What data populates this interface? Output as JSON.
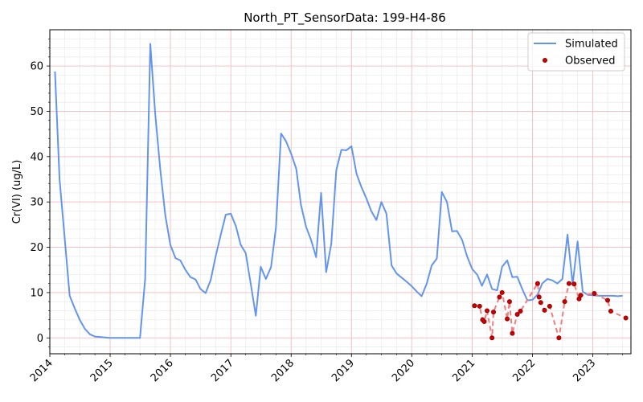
{
  "chart_data": {
    "type": "line",
    "title": "North_PT_SensorData: 199-H4-86",
    "xlabel": "",
    "ylabel": "Cr(VI) (ug/L)",
    "x_axis": "date",
    "xlim": [
      "2014-01-01",
      "2023-08-20"
    ],
    "ylim": [
      -3.5,
      68
    ],
    "x_ticks": [
      "2014-01-01",
      "2015-01-01",
      "2016-01-01",
      "2017-01-01",
      "2018-01-01",
      "2019-01-01",
      "2020-01-01",
      "2021-01-01",
      "2022-01-01",
      "2023-01-01"
    ],
    "x_tick_labels": [
      "2014",
      "2015",
      "2016",
      "2017",
      "2018",
      "2019",
      "2020",
      "2021",
      "2022",
      "2023"
    ],
    "y_ticks": [
      0,
      10,
      20,
      30,
      40,
      50,
      60
    ],
    "y_tick_labels": [
      "0",
      "10",
      "20",
      "30",
      "40",
      "50",
      "60"
    ],
    "grid": true,
    "legend_position": "top-right",
    "legend": [
      {
        "label": "Simulated",
        "marker": "line"
      },
      {
        "label": "Observed",
        "marker": "dot"
      }
    ],
    "colors": {
      "simulated": "#6495ed",
      "observed": "#cc0000",
      "observed_line": "#f08080",
      "major_grid": "#f4c2c2",
      "minor_grid": "#ececec"
    },
    "series": [
      {
        "name": "Simulated",
        "style": "line",
        "x": [
          "2014-02-01",
          "2014-03-01",
          "2014-04-01",
          "2014-05-01",
          "2014-06-01",
          "2014-07-01",
          "2014-08-01",
          "2014-09-01",
          "2014-10-01",
          "2014-11-01",
          "2014-12-01",
          "2015-01-01",
          "2015-02-01",
          "2015-03-01",
          "2015-04-01",
          "2015-05-01",
          "2015-06-01",
          "2015-07-01",
          "2015-08-01",
          "2015-09-01",
          "2015-10-01",
          "2015-11-01",
          "2015-12-01",
          "2016-01-01",
          "2016-02-01",
          "2016-03-01",
          "2016-04-01",
          "2016-05-01",
          "2016-06-01",
          "2016-07-01",
          "2016-08-01",
          "2016-09-01",
          "2016-10-01",
          "2016-11-01",
          "2016-12-01",
          "2017-01-01",
          "2017-02-01",
          "2017-03-01",
          "2017-04-01",
          "2017-05-01",
          "2017-06-01",
          "2017-07-01",
          "2017-08-01",
          "2017-09-01",
          "2017-10-01",
          "2017-11-01",
          "2017-12-01",
          "2018-01-01",
          "2018-02-01",
          "2018-03-01",
          "2018-04-01",
          "2018-05-01",
          "2018-06-01",
          "2018-07-01",
          "2018-08-01",
          "2018-09-01",
          "2018-10-01",
          "2018-11-01",
          "2018-12-01",
          "2019-01-01",
          "2019-02-01",
          "2019-03-01",
          "2019-04-01",
          "2019-05-01",
          "2019-06-01",
          "2019-07-01",
          "2019-08-01",
          "2019-09-01",
          "2019-10-01",
          "2019-11-01",
          "2019-12-01",
          "2020-01-01",
          "2020-02-01",
          "2020-03-01",
          "2020-04-01",
          "2020-05-01",
          "2020-06-01",
          "2020-07-01",
          "2020-08-01",
          "2020-09-01",
          "2020-10-01",
          "2020-11-01",
          "2020-12-01",
          "2021-01-01",
          "2021-02-01",
          "2021-03-01",
          "2021-04-01",
          "2021-05-01",
          "2021-06-01",
          "2021-07-01",
          "2021-08-01",
          "2021-09-01",
          "2021-10-01",
          "2021-11-01",
          "2021-12-01",
          "2022-01-01",
          "2022-02-01",
          "2022-03-01",
          "2022-04-01",
          "2022-05-01",
          "2022-06-01",
          "2022-07-01",
          "2022-08-01",
          "2022-09-01",
          "2022-10-01",
          "2022-11-01",
          "2022-12-01",
          "2023-01-01",
          "2023-02-01",
          "2023-03-01",
          "2023-04-01",
          "2023-05-01",
          "2023-06-01",
          "2023-07-01"
        ],
        "y": [
          58.8,
          35,
          22,
          9.3,
          6.5,
          4,
          2,
          0.8,
          0.3,
          0.2,
          0.1,
          0,
          0,
          0,
          0,
          0,
          0,
          0,
          13,
          64.9,
          49.5,
          37,
          27,
          20.5,
          17.6,
          17.1,
          15,
          13.4,
          12.9,
          10.8,
          9.9,
          12.8,
          18,
          22.8,
          27.2,
          27.4,
          24.6,
          20.6,
          18.7,
          12,
          4.9,
          15.7,
          13,
          15.6,
          24.3,
          45.1,
          43.4,
          40.6,
          37.3,
          29.4,
          24.5,
          21.7,
          17.8,
          32,
          14.5,
          20.8,
          37,
          41.5,
          41.4,
          42.3,
          36.2,
          33.4,
          30.8,
          28,
          26,
          30,
          27.4,
          16,
          14.2,
          13.3,
          12.4,
          11.4,
          10.2,
          9.2,
          12,
          16,
          17.5,
          32.2,
          30,
          23.5,
          23.6,
          21.6,
          18,
          15.2,
          13.9,
          11.5,
          14,
          10.8,
          10.5,
          15.7,
          17.1,
          13.4,
          13.5,
          10.7,
          8.3,
          8.4,
          9.6,
          12,
          13,
          12.7,
          12,
          13,
          22.8,
          11.8,
          21.3,
          10.2,
          9.5,
          9.4,
          9.3,
          9.3,
          9.3,
          9.3,
          9.2,
          9.3
        ]
      },
      {
        "name": "Observed",
        "style": "scatter",
        "x": [
          "2021-01-15",
          "2021-02-15",
          "2021-03-05",
          "2021-03-15",
          "2021-04-01",
          "2021-05-01",
          "2021-05-10",
          "2021-06-15",
          "2021-07-01",
          "2021-08-01",
          "2021-08-15",
          "2021-09-01",
          "2021-10-01",
          "2021-10-20",
          "2022-02-01",
          "2022-02-10",
          "2022-02-20",
          "2022-03-15",
          "2022-04-15",
          "2022-06-10",
          "2022-07-15",
          "2022-08-10",
          "2022-09-10",
          "2022-10-10",
          "2022-10-20",
          "2023-01-10",
          "2023-04-01",
          "2023-04-20",
          "2023-07-20"
        ],
        "y": [
          7.1,
          7.0,
          4.0,
          3.6,
          6.0,
          0.0,
          5.7,
          9.0,
          10.0,
          4.2,
          8.0,
          1.0,
          5.2,
          5.9,
          12.0,
          9.0,
          7.8,
          6.1,
          7.0,
          0.0,
          8.0,
          12.0,
          11.9,
          8.6,
          9.4,
          9.8,
          8.3,
          5.9,
          4.4
        ]
      }
    ]
  }
}
